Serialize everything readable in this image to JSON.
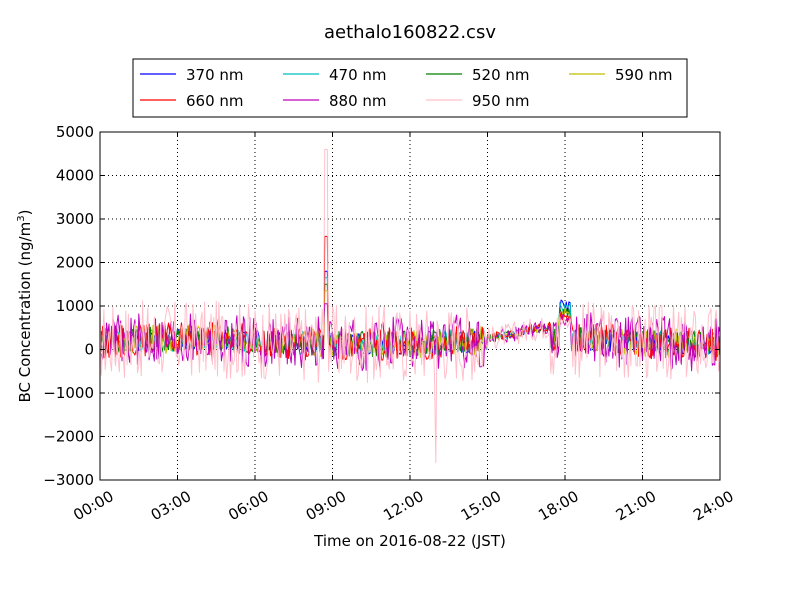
{
  "chart_data": {
    "type": "line",
    "title": "aethalo160822.csv",
    "xlabel": "Time on 2016-08-22 (JST)",
    "ylabel_main": "BC Concentration (ng/m",
    "ylabel_sup": "3",
    "ylabel_end": ")",
    "xlim_hours": [
      0,
      24
    ],
    "ylim": [
      -3000,
      5000
    ],
    "x_ticks": [
      "00:00",
      "03:00",
      "06:00",
      "09:00",
      "12:00",
      "15:00",
      "18:00",
      "21:00",
      "24:00"
    ],
    "y_ticks": [
      "5000",
      "4000",
      "3000",
      "2000",
      "1000",
      "0",
      "−1000",
      "−2000",
      "−3000"
    ],
    "grid": true,
    "legend_position": "top",
    "legend_columns": 4,
    "series": [
      {
        "name": "370 nm",
        "color": "#0000ff",
        "amp": 260,
        "seed": 11
      },
      {
        "name": "470 nm",
        "color": "#00bfbf",
        "amp": 280,
        "seed": 12
      },
      {
        "name": "520 nm",
        "color": "#008000",
        "amp": 300,
        "seed": 13
      },
      {
        "name": "590 nm",
        "color": "#bfbf00",
        "amp": 330,
        "seed": 14
      },
      {
        "name": "660 nm",
        "color": "#ff0000",
        "amp": 380,
        "seed": 15
      },
      {
        "name": "880 nm",
        "color": "#bf00bf",
        "amp": 620,
        "seed": 16
      },
      {
        "name": "950 nm",
        "color": "#ffc0cb",
        "amp": 900,
        "seed": 17
      }
    ],
    "features": {
      "quiet_from_hours": 15.0,
      "quiet_to_hours": 17.4,
      "morning_peak_hours": 8.75,
      "morning_peak_950": 4600,
      "morning_peak_660": 2600,
      "low_spike_hours": 13.0,
      "low_spike_950": -2600,
      "evening_rise_hours": 18.0,
      "evening_rise_value": 1000
    }
  }
}
